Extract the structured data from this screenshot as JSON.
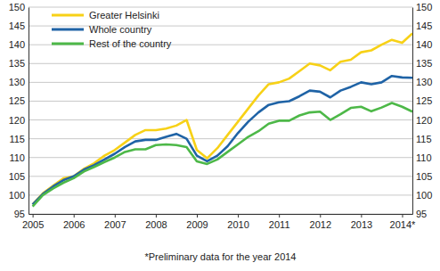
{
  "chart_data": {
    "type": "line",
    "annotations": [
      "*Preliminary data for the year 2014"
    ],
    "x": [
      2005,
      2005.25,
      2005.5,
      2005.75,
      2006,
      2006.25,
      2006.5,
      2006.75,
      2007,
      2007.25,
      2007.5,
      2007.75,
      2008,
      2008.25,
      2008.5,
      2008.75,
      2009,
      2009.25,
      2009.5,
      2009.75,
      2010,
      2010.25,
      2010.5,
      2010.75,
      2011,
      2011.25,
      2011.5,
      2011.75,
      2012,
      2012.25,
      2012.5,
      2012.75,
      2013,
      2013.25,
      2013.5,
      2013.75,
      2014,
      2014.25
    ],
    "series": [
      {
        "name": "Greater Helsinki",
        "color": "#f7d117",
        "values": [
          97.5,
          100.5,
          102.5,
          104.5,
          105,
          107,
          108.5,
          110.5,
          112,
          114,
          116,
          117.3,
          117.3,
          117.7,
          118.5,
          120,
          112,
          109.8,
          112.5,
          116,
          119.5,
          123,
          126.5,
          129.5,
          130,
          131,
          133,
          135,
          134.5,
          133.2,
          135.5,
          136,
          138,
          138.5,
          140,
          141.3,
          140.5,
          143
        ]
      },
      {
        "name": "Whole country",
        "color": "#1f63a6",
        "values": [
          97.5,
          100.3,
          102.3,
          104,
          105,
          106.8,
          108,
          109.5,
          111,
          112.8,
          114.3,
          114.7,
          114.7,
          115.5,
          116.3,
          115,
          110.5,
          109,
          110.5,
          113,
          116.5,
          119.5,
          122,
          124,
          124.7,
          125,
          126.3,
          127.8,
          127.5,
          126,
          127.8,
          128.8,
          130,
          129.5,
          130,
          131.7,
          131.3,
          131.2
        ]
      },
      {
        "name": "Rest of the country",
        "color": "#4db848",
        "values": [
          97,
          100,
          101.8,
          103.3,
          104.5,
          106.3,
          107.5,
          108.8,
          110,
          111.5,
          112.2,
          112.2,
          113.3,
          113.5,
          113.3,
          112.8,
          109,
          108.3,
          109.5,
          111.5,
          113.5,
          115.5,
          117,
          119,
          119.8,
          119.8,
          121.2,
          122,
          122.2,
          120,
          121.5,
          123.2,
          123.5,
          122.3,
          123.3,
          124.5,
          123.5,
          122.2
        ]
      }
    ],
    "xlim": [
      2004.9,
      2014.25
    ],
    "xticks": [
      2005,
      2006,
      2007,
      2008,
      2009,
      2010,
      2011,
      2012,
      2013,
      {
        "value": 2014,
        "label": "2014*"
      }
    ],
    "ylim": [
      95,
      150
    ],
    "yticks": [
      95,
      100,
      105,
      110,
      115,
      120,
      125,
      130,
      135,
      140,
      145,
      150
    ],
    "y2lim": [
      95,
      150
    ],
    "y2ticks": [
      95,
      100,
      105,
      110,
      115,
      120,
      125,
      130,
      135,
      140,
      145,
      150
    ],
    "grid": true,
    "legend": "upper left"
  }
}
